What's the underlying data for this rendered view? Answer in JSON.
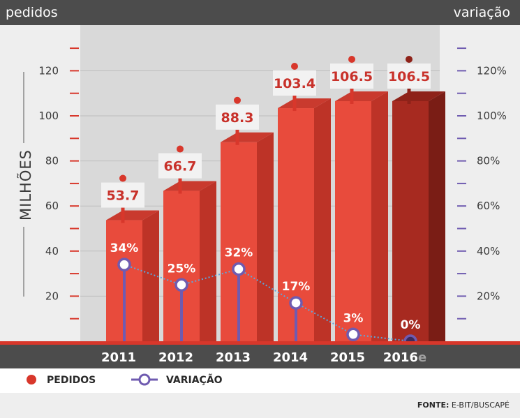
{
  "header": {
    "left": "pedidos",
    "right": "variação"
  },
  "colors": {
    "bar": "#e84b3c",
    "bar_estimate": "#a72a20",
    "line": "#6f5bb0",
    "dark": "#4c4c4c",
    "axis_red": "#d8372b"
  },
  "chart_data": {
    "type": "bar",
    "categories": [
      "2011",
      "2012",
      "2013",
      "2014",
      "2015",
      "2016e"
    ],
    "category_labels": [
      {
        "main": "2011",
        "suffix": ""
      },
      {
        "main": "2012",
        "suffix": ""
      },
      {
        "main": "2013",
        "suffix": ""
      },
      {
        "main": "2014",
        "suffix": ""
      },
      {
        "main": "2015",
        "suffix": ""
      },
      {
        "main": "2016",
        "suffix": "e"
      }
    ],
    "series": [
      {
        "name": "PEDIDOS",
        "values": [
          53.7,
          66.7,
          88.3,
          103.4,
          106.5,
          106.5
        ],
        "labels": [
          "53.7",
          "66.7",
          "88.3",
          "103.4",
          "106.5",
          "106.5"
        ]
      },
      {
        "name": "VARIAÇÃO",
        "values": [
          34,
          25,
          32,
          17,
          3,
          0
        ],
        "labels": [
          "34%",
          "25%",
          "32%",
          "17%",
          "3%",
          "0%"
        ]
      }
    ],
    "ylabel": "MILHÕES",
    "ylim": [
      0,
      140
    ],
    "y_ticks": [
      20,
      40,
      60,
      80,
      100,
      120
    ],
    "y_tick_labels": [
      "20",
      "40",
      "60",
      "80",
      "100",
      "120"
    ],
    "y2lim": [
      0,
      140
    ],
    "y2_ticks": [
      20,
      40,
      60,
      80,
      100,
      120
    ],
    "y2_tick_labels": [
      "20%",
      "40%",
      "60%",
      "80%",
      "100%",
      "120%"
    ],
    "legend": [
      {
        "label": "PEDIDOS"
      },
      {
        "label": "VARIAÇÃO"
      }
    ],
    "legend_position": "bottom-left",
    "source": {
      "label": "FONTE:",
      "text": "E-BIT/BUSCAPÉ"
    }
  }
}
